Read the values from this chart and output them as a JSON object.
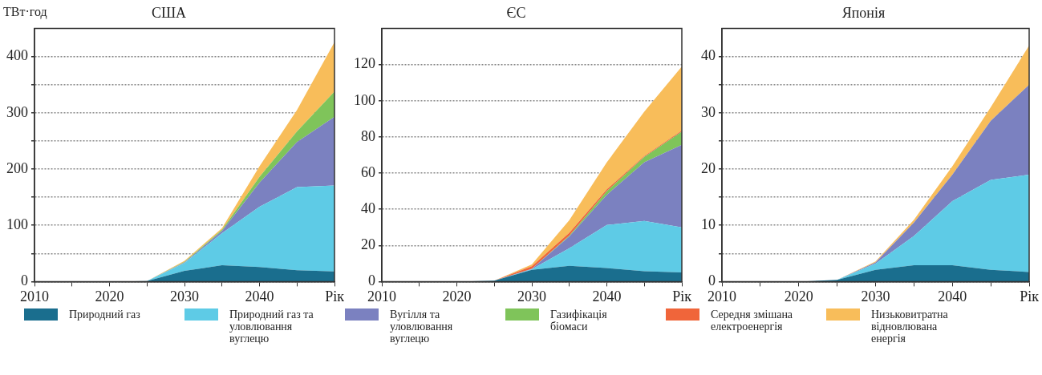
{
  "chart_data": [
    {
      "type": "area",
      "title": "США",
      "ylabel": "ТВт·год",
      "stacked": true,
      "grid": "y",
      "legend": "bottom",
      "marker": "none",
      "x": [
        2010,
        2015,
        2020,
        2025,
        2030,
        2035,
        2040,
        2045,
        2050
      ],
      "xlim": [
        2010,
        2050
      ],
      "xticks": [
        2010,
        {
          "value": 2015,
          "label": null
        },
        2020,
        {
          "value": 2025,
          "label": null
        },
        2030,
        {
          "value": 2035,
          "label": null
        },
        2040,
        {
          "value": 2045,
          "label": null
        },
        {
          "value": 2050,
          "label": "Рік"
        }
      ],
      "ylim": [
        0,
        450
      ],
      "yticks": [
        0,
        {
          "value": 50,
          "label": null
        },
        100,
        {
          "value": 150,
          "label": null
        },
        200,
        {
          "value": 250,
          "label": null
        },
        300,
        {
          "value": 350,
          "label": null
        },
        400
      ],
      "series": [
        {
          "name": "Природний газ",
          "color": "#1a6e8e",
          "values": [
            0,
            0,
            0,
            1,
            19,
            29,
            26,
            20,
            18
          ]
        },
        {
          "name": "Природний газ та уловлювання вуглецю",
          "color": "#5ecbe6",
          "values": [
            0,
            0,
            0,
            0,
            14,
            57,
            107,
            148,
            153
          ]
        },
        {
          "name": "Вугілля та уловлювання вуглецю",
          "color": "#7b81c0",
          "values": [
            0,
            0,
            0,
            0,
            1,
            4,
            43,
            80,
            122
          ]
        },
        {
          "name": "Газифікація біомаси",
          "color": "#7fc45a",
          "values": [
            0,
            0,
            0,
            0,
            1,
            2,
            10,
            19,
            45
          ]
        },
        {
          "name": "Середня змішана електроенергія",
          "color": "#f0653a",
          "values": [
            null,
            null,
            null,
            null,
            null,
            null,
            null,
            null,
            null
          ]
        },
        {
          "name": "Низьковитратна відновлювана енергія",
          "color": "#f8bd5a",
          "values": [
            0,
            0,
            0,
            0,
            2,
            3,
            19,
            38,
            88
          ]
        }
      ]
    },
    {
      "type": "area",
      "title": "ЄС",
      "stacked": true,
      "grid": "y",
      "marker": "none",
      "x": [
        2010,
        2015,
        2020,
        2025,
        2030,
        2035,
        2040,
        2045,
        2050
      ],
      "xlim": [
        2010,
        2050
      ],
      "xticks": [
        2010,
        {
          "value": 2015,
          "label": null
        },
        2020,
        {
          "value": 2025,
          "label": null
        },
        2030,
        {
          "value": 2035,
          "label": null
        },
        2040,
        {
          "value": 2045,
          "label": null
        },
        {
          "value": 2050,
          "label": "Рік"
        }
      ],
      "ylim": [
        0,
        140
      ],
      "yticks": [
        0,
        20,
        40,
        60,
        80,
        100,
        120
      ],
      "series": [
        {
          "color": "#1a6e8e",
          "values": [
            0,
            0,
            0,
            0.5,
            6.5,
            8.7,
            7.5,
            5.7,
            5
          ]
        },
        {
          "color": "#5ecbe6",
          "values": [
            0,
            0,
            0,
            0,
            0.3,
            9.8,
            23.8,
            27.8,
            25
          ]
        },
        {
          "color": "#7b81c0",
          "values": [
            0,
            0,
            0,
            0,
            0.2,
            6.5,
            16.7,
            32.5,
            45.6
          ]
        },
        {
          "color": "#7fc45a",
          "values": [
            0,
            0,
            0,
            0,
            0,
            0.5,
            2,
            3,
            7.4
          ]
        },
        {
          "color": "#f0653a",
          "values": [
            0,
            0,
            0,
            0,
            1.5,
            1.5,
            1,
            0.5,
            0.5
          ]
        },
        {
          "color": "#f8bd5a",
          "values": [
            0,
            0,
            0,
            0,
            1,
            7,
            15,
            24.5,
            35.5
          ]
        }
      ]
    },
    {
      "type": "area",
      "title": "Японія",
      "stacked": true,
      "grid": "y",
      "marker": "none",
      "x": [
        2010,
        2015,
        2020,
        2025,
        2030,
        2035,
        2040,
        2045,
        2050
      ],
      "xlim": [
        2010,
        2050
      ],
      "xticks": [
        2010,
        {
          "value": 2015,
          "label": null
        },
        2020,
        {
          "value": 2025,
          "label": null
        },
        2030,
        {
          "value": 2035,
          "label": null
        },
        2040,
        {
          "value": 2045,
          "label": null
        },
        {
          "value": 2050,
          "label": "Рік"
        }
      ],
      "ylim": [
        0,
        45
      ],
      "yticks": [
        0,
        {
          "value": 5,
          "label": null
        },
        10,
        {
          "value": 15,
          "label": null
        },
        20,
        {
          "value": 25,
          "label": null
        },
        30,
        {
          "value": 35,
          "label": null
        },
        40
      ],
      "series": [
        {
          "color": "#1a6e8e",
          "values": [
            0,
            0,
            0,
            0.3,
            2.1,
            2.9,
            2.9,
            2.1,
            1.7
          ]
        },
        {
          "color": "#5ecbe6",
          "values": [
            0,
            0,
            0,
            0,
            1.1,
            5.2,
            11.4,
            16,
            17.3
          ]
        },
        {
          "color": "#7b81c0",
          "values": [
            0,
            0,
            0,
            0,
            0.2,
            2.4,
            4.7,
            10.5,
            16
          ]
        },
        {
          "color": "#7fc45a",
          "values": [
            null,
            null,
            null,
            null,
            null,
            null,
            null,
            null,
            null
          ]
        },
        {
          "color": "#f0653a",
          "values": [
            null,
            null,
            null,
            null,
            null,
            null,
            null,
            null,
            null
          ]
        },
        {
          "color": "#f8bd5a",
          "values": [
            0,
            0,
            0,
            0,
            0.2,
            0.5,
            1.5,
            2.4,
            7
          ]
        }
      ]
    }
  ]
}
